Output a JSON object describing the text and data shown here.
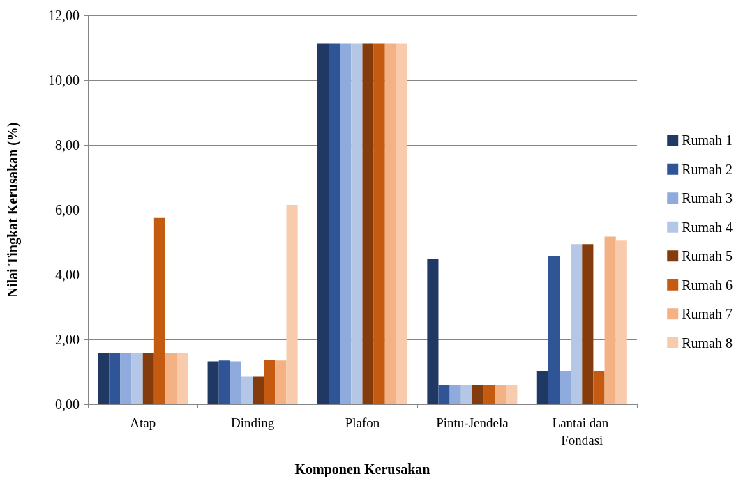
{
  "chart_data": {
    "type": "bar",
    "xlabel": "Komponen Kerusakan",
    "ylabel": "Nilai Tingkat Kerusakan (%)",
    "categories": [
      "Atap",
      "Dinding",
      "Plafon",
      "Pintu-Jendela",
      "Lantai dan Fondasi"
    ],
    "series": [
      {
        "name": "Rumah 1",
        "color": "#203864",
        "values": [
          1.57,
          1.32,
          11.13,
          4.48,
          1.02
        ]
      },
      {
        "name": "Rumah 2",
        "color": "#2f5597",
        "values": [
          1.57,
          1.35,
          11.13,
          0.6,
          4.58
        ]
      },
      {
        "name": "Rumah 3",
        "color": "#8faadc",
        "values": [
          1.57,
          1.32,
          11.13,
          0.6,
          1.02
        ]
      },
      {
        "name": "Rumah 4",
        "color": "#b4c7e7",
        "values": [
          1.57,
          0.85,
          11.13,
          0.6,
          4.94
        ]
      },
      {
        "name": "Rumah 5",
        "color": "#843c0c",
        "values": [
          1.57,
          0.85,
          11.13,
          0.6,
          4.94
        ]
      },
      {
        "name": "Rumah 6",
        "color": "#c55a11",
        "values": [
          5.75,
          1.37,
          11.13,
          0.6,
          1.02
        ]
      },
      {
        "name": "Rumah 7",
        "color": "#f4b183",
        "values": [
          1.57,
          1.35,
          11.13,
          0.6,
          5.17
        ]
      },
      {
        "name": "Rumah 8",
        "color": "#f8cbad",
        "values": [
          1.57,
          6.15,
          11.13,
          0.6,
          5.05
        ]
      }
    ],
    "ylim": [
      0,
      12
    ],
    "yticks": [
      {
        "value": 0,
        "label": "0,00"
      },
      {
        "value": 2,
        "label": "2,00"
      },
      {
        "value": 4,
        "label": "4,00"
      },
      {
        "value": 6,
        "label": "6,00"
      },
      {
        "value": 8,
        "label": "8,00"
      },
      {
        "value": 10,
        "label": "10,00"
      },
      {
        "value": 12,
        "label": "12,00"
      }
    ],
    "grid": "y",
    "legend": "right"
  }
}
